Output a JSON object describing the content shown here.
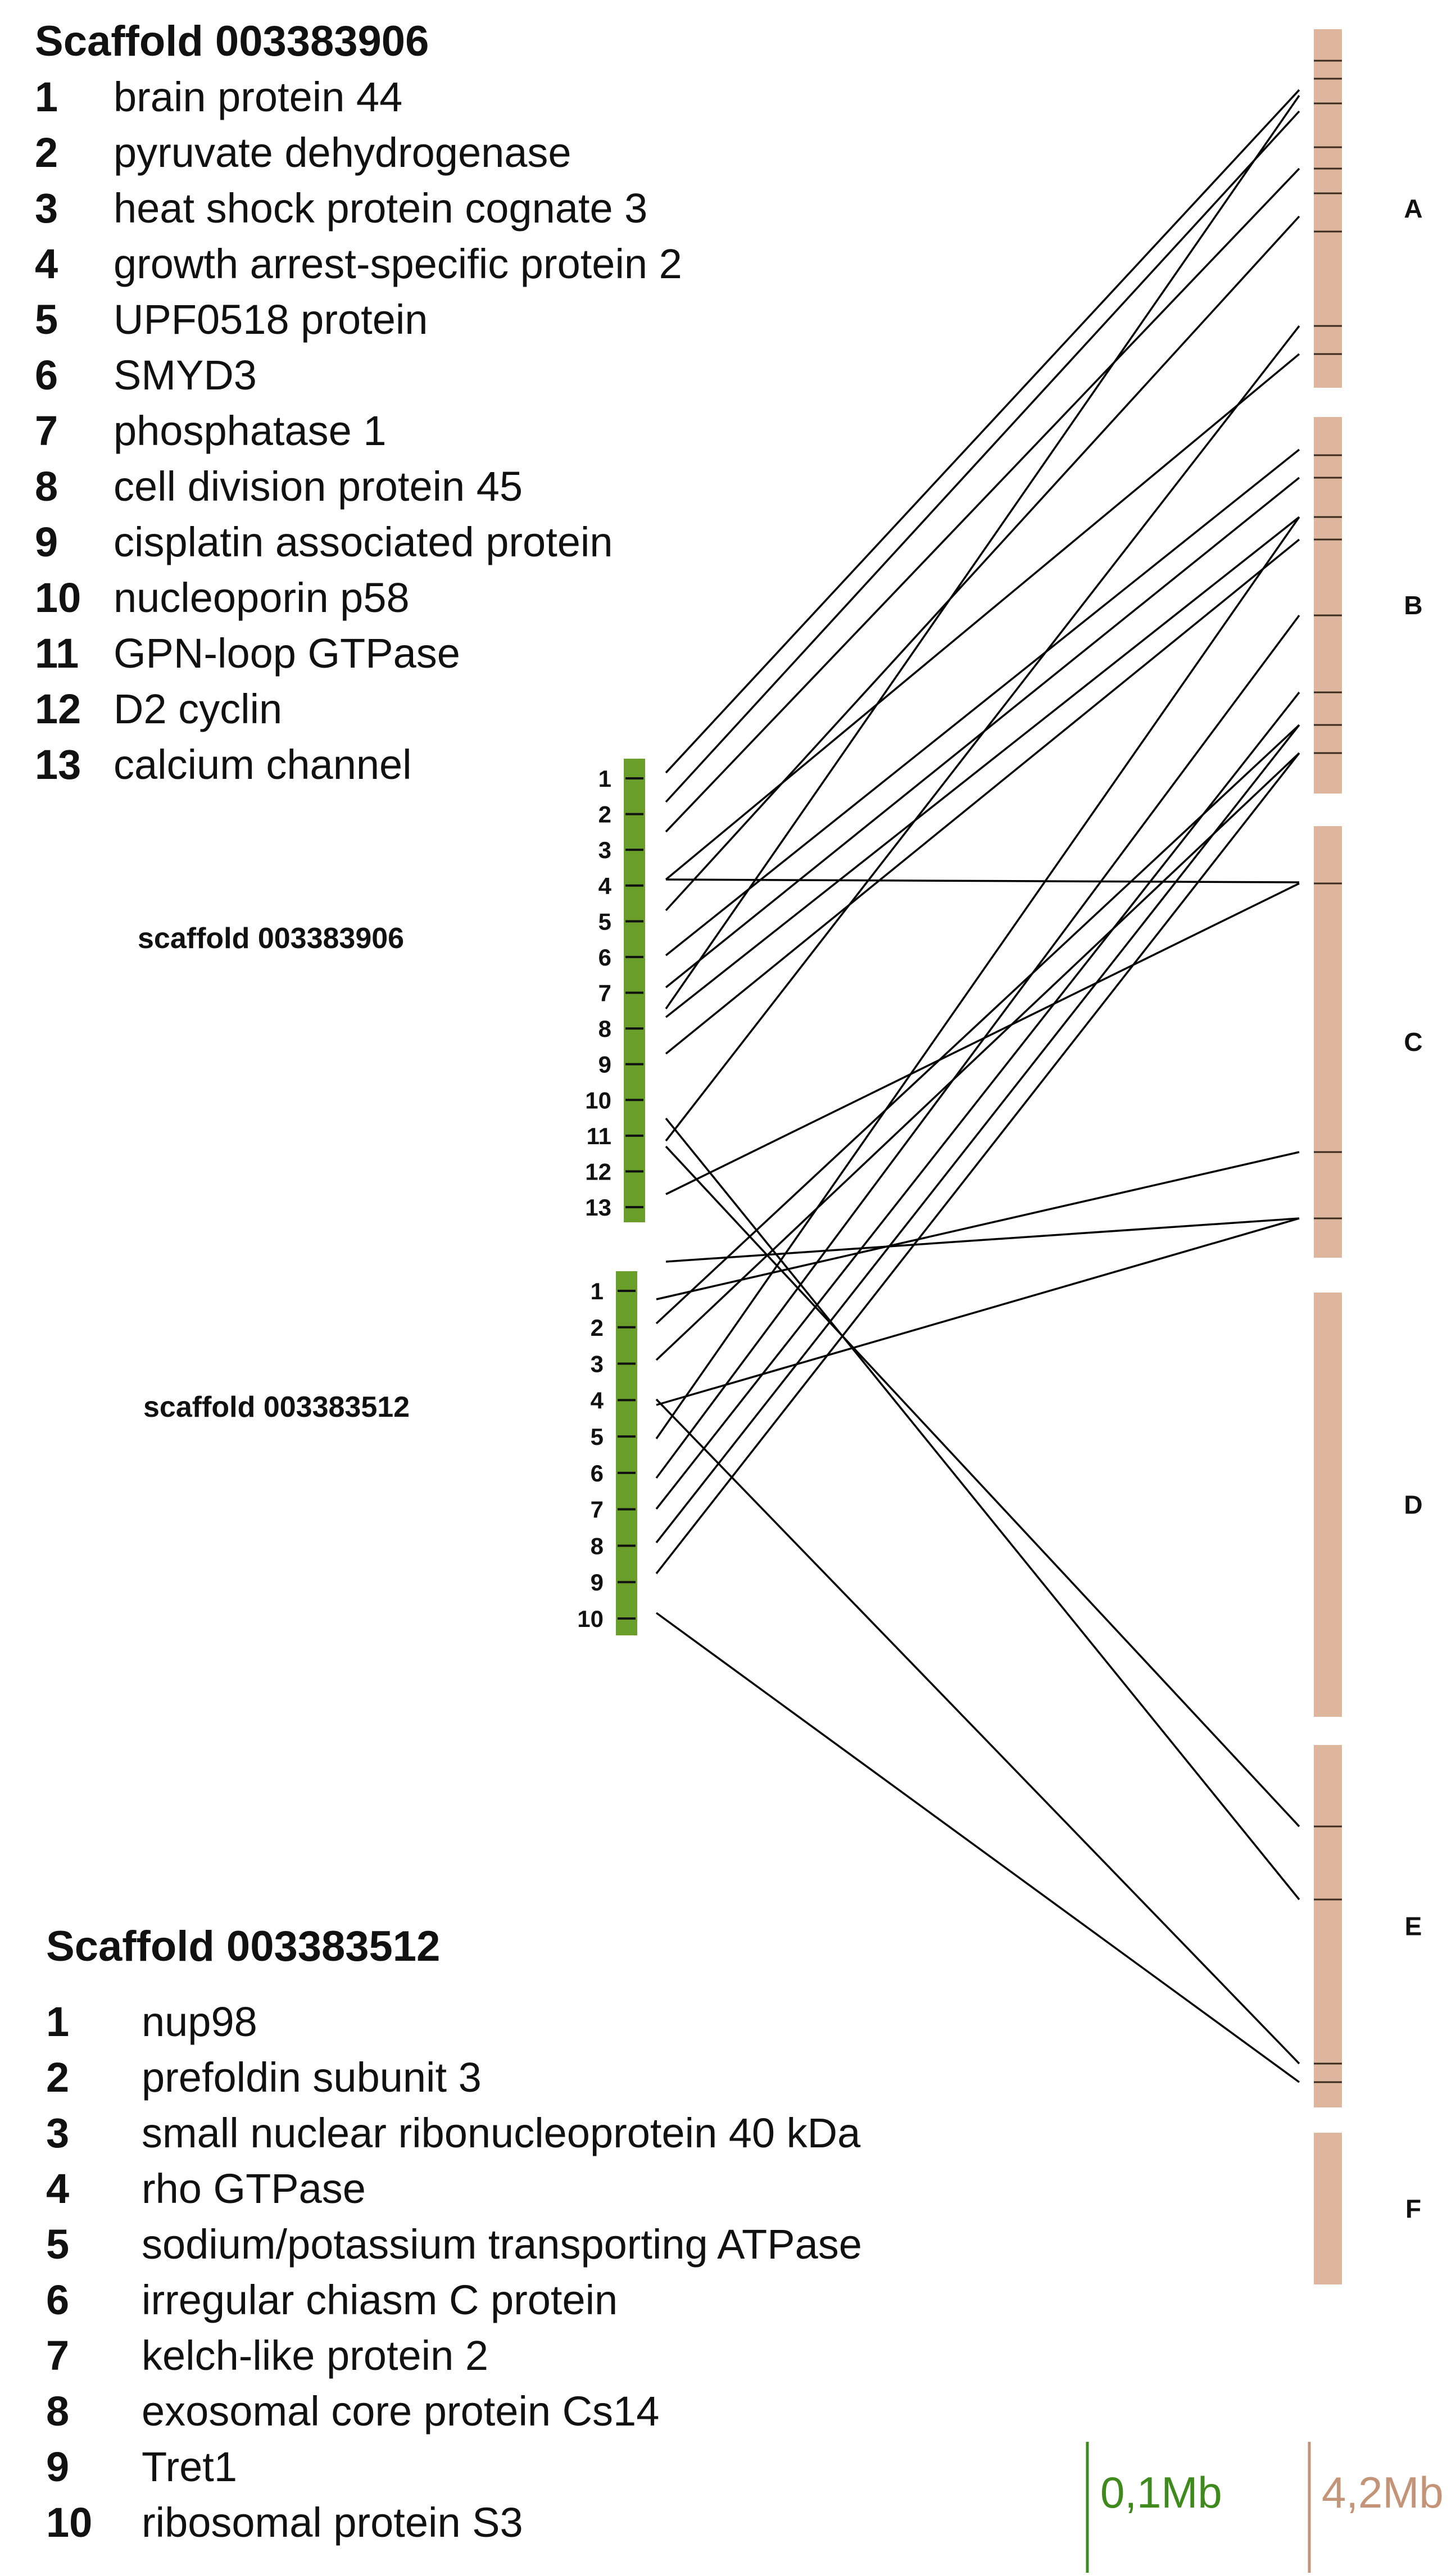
{
  "legend1": {
    "title": "Scaffold 003383906",
    "items": [
      {
        "num": "1",
        "text": "brain protein 44"
      },
      {
        "num": "2",
        "text": "pyruvate dehydrogenase"
      },
      {
        "num": "3",
        "text": "heat shock protein cognate 3"
      },
      {
        "num": "4",
        "text": "growth arrest-specific protein 2"
      },
      {
        "num": "5",
        "text": "UPF0518 protein"
      },
      {
        "num": "6",
        "text": "SMYD3"
      },
      {
        "num": "7",
        "text": "phosphatase 1"
      },
      {
        "num": "8",
        "text": "cell division protein 45"
      },
      {
        "num": "9",
        "text": "cisplatin associated protein"
      },
      {
        "num": "10",
        "text": "nucleoporin p58"
      },
      {
        "num": "11",
        "text": "GPN-loop GTPase"
      },
      {
        "num": "12",
        "text": "D2 cyclin"
      },
      {
        "num": "13",
        "text": "calcium channel"
      }
    ]
  },
  "legend2": {
    "title": "Scaffold  003383512",
    "items": [
      {
        "num": "1",
        "text": "nup98"
      },
      {
        "num": "2",
        "text": "prefoldin subunit 3"
      },
      {
        "num": "3",
        "text": "small nuclear ribonucleoprotein 40 kDa"
      },
      {
        "num": "4",
        "text": "rho GTPase"
      },
      {
        "num": "5",
        "text": "sodium/potassium transporting ATPase"
      },
      {
        "num": "6",
        "text": "irregular chiasm C protein"
      },
      {
        "num": "7",
        "text": "kelch-like protein 2"
      },
      {
        "num": "8",
        "text": "exosomal core protein Cs14"
      },
      {
        "num": "9",
        "text": "Tret1"
      },
      {
        "num": "10",
        "text": "ribosomal protein S3"
      }
    ]
  },
  "scaffold1": {
    "label": "scaffold 003383906",
    "genes": [
      "1",
      "2",
      "3",
      "4",
      "5",
      "6",
      "7",
      "8",
      "9",
      "10",
      "11",
      "12",
      "13"
    ]
  },
  "scaffold2": {
    "label": "scaffold 003383512",
    "genes": [
      "1",
      "2",
      "3",
      "4",
      "5",
      "6",
      "7",
      "8",
      "9",
      "10"
    ]
  },
  "chromosomes": [
    {
      "name": "A"
    },
    {
      "name": "B"
    },
    {
      "name": "C"
    },
    {
      "name": "D"
    },
    {
      "name": "E"
    },
    {
      "name": "F"
    }
  ],
  "scale": {
    "green_label": "0,1Mb",
    "tan_label": "4,2Mb"
  },
  "colors": {
    "scaffold": "#6a9e2a",
    "chromosome": "#deb59d",
    "scale_green": "#3f8a1c",
    "scale_tan": "#c49478",
    "line": "#000000"
  }
}
